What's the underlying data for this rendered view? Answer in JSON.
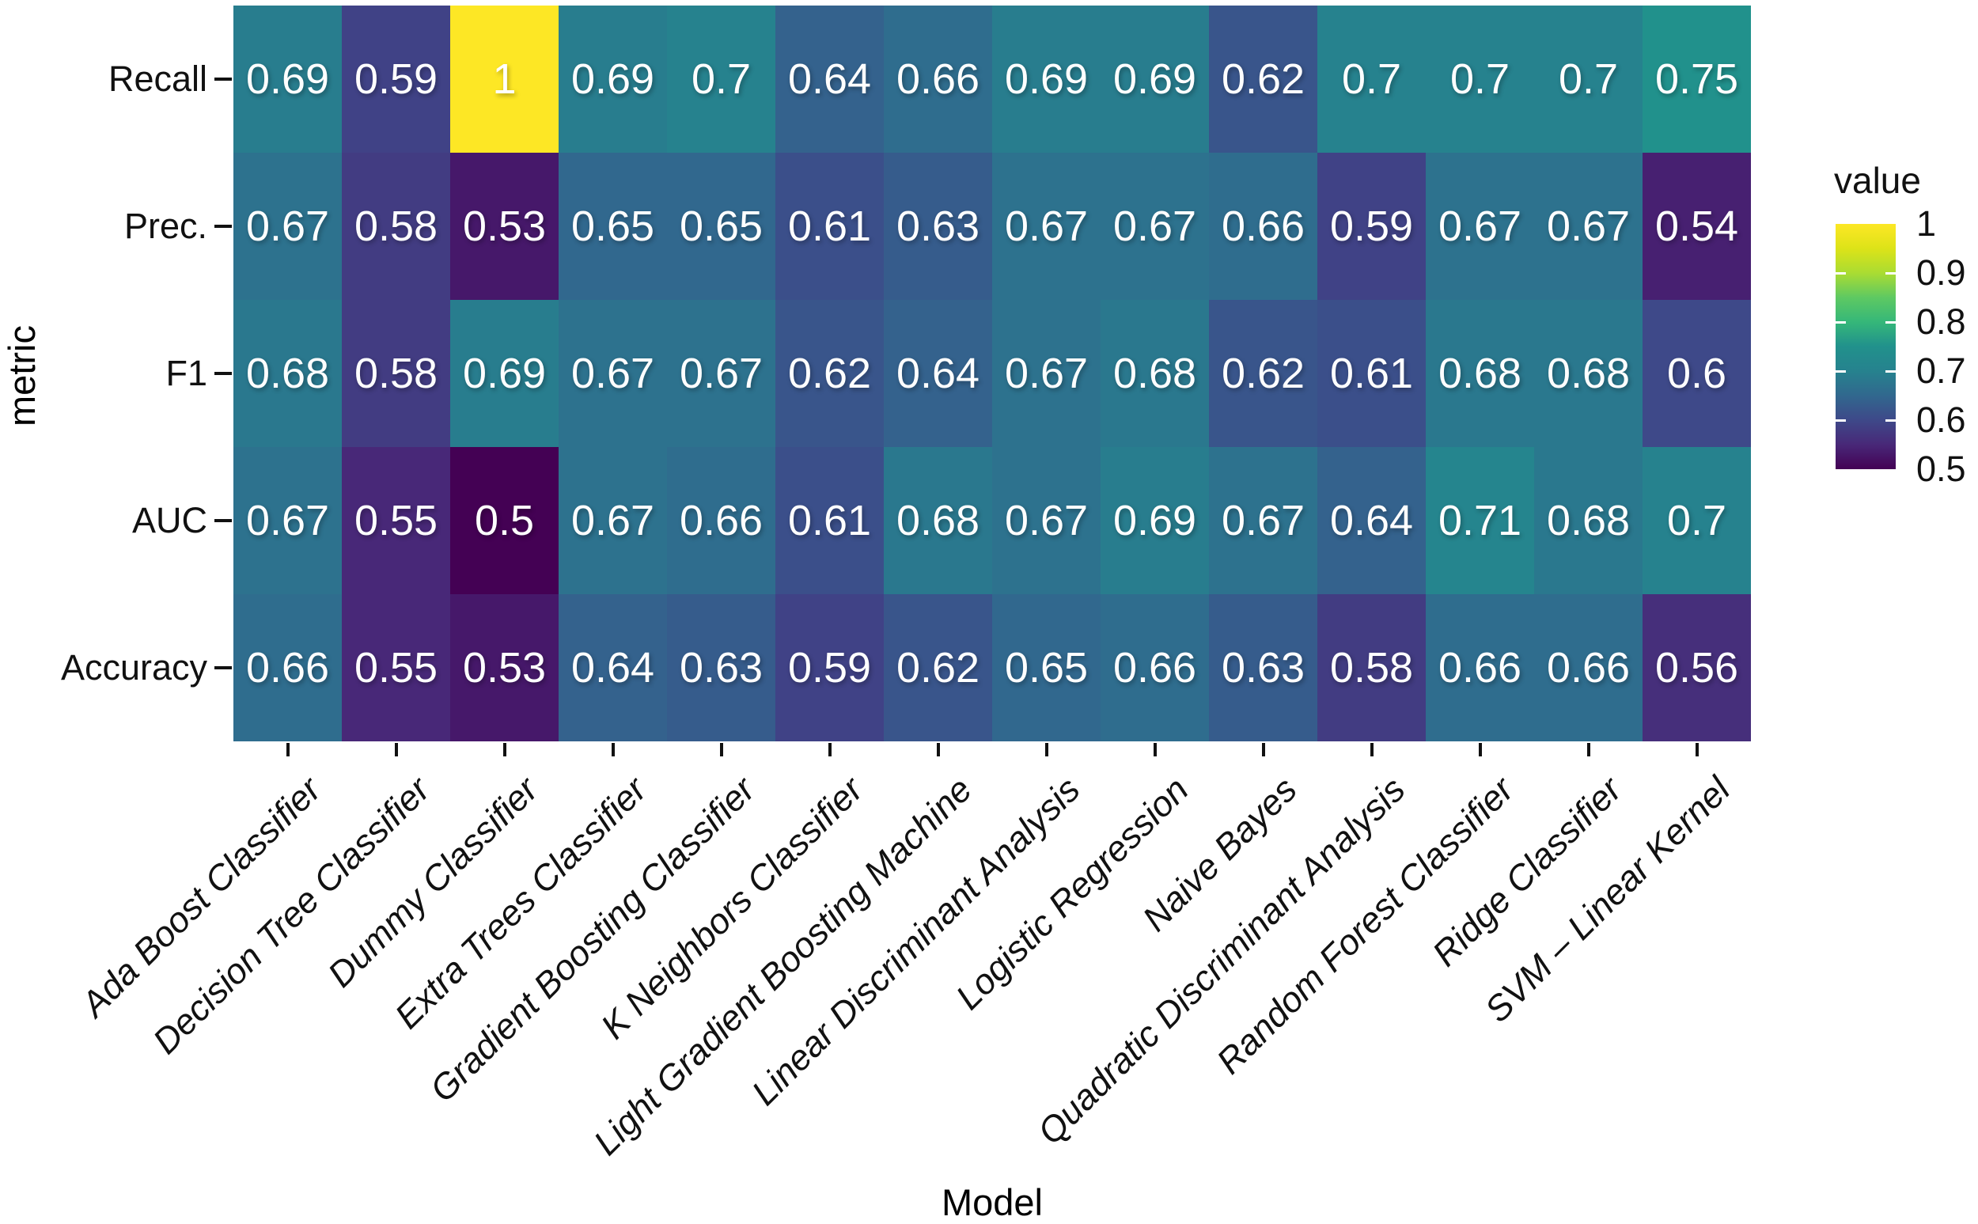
{
  "chart_data": {
    "type": "heatmap",
    "title": "",
    "xlabel": "Model",
    "ylabel": "metric",
    "x_categories": [
      "Ada Boost Classifier",
      "Decision Tree Classifier",
      "Dummy Classifier",
      "Extra Trees Classifier",
      "Gradient Boosting Classifier",
      "K Neighbors Classifier",
      "Light Gradient Boosting Machine",
      "Linear Discriminant Analysis",
      "Logistic Regression",
      "Naive Bayes",
      "Quadratic Discriminant Analysis",
      "Random Forest Classifier",
      "Ridge Classifier",
      "SVM – Linear Kernel"
    ],
    "y_categories_top_to_bottom": [
      "Recall",
      "Prec.",
      "F1",
      "AUC",
      "Accuracy"
    ],
    "values_by_row": [
      [
        0.69,
        0.59,
        1,
        0.69,
        0.7,
        0.64,
        0.66,
        0.69,
        0.69,
        0.62,
        0.7,
        0.7,
        0.7,
        0.75
      ],
      [
        0.67,
        0.58,
        0.53,
        0.65,
        0.65,
        0.61,
        0.63,
        0.67,
        0.67,
        0.66,
        0.59,
        0.67,
        0.67,
        0.54
      ],
      [
        0.68,
        0.58,
        0.69,
        0.67,
        0.67,
        0.62,
        0.64,
        0.67,
        0.68,
        0.62,
        0.61,
        0.68,
        0.68,
        0.6
      ],
      [
        0.67,
        0.55,
        0.5,
        0.67,
        0.66,
        0.61,
        0.68,
        0.67,
        0.69,
        0.67,
        0.64,
        0.71,
        0.68,
        0.7
      ],
      [
        0.66,
        0.55,
        0.53,
        0.64,
        0.63,
        0.59,
        0.62,
        0.65,
        0.66,
        0.63,
        0.58,
        0.66,
        0.66,
        0.56
      ]
    ],
    "color_scale": {
      "name": "viridis",
      "domain": [
        0.5,
        1
      ],
      "legend_title": "value",
      "legend_tick_labels": [
        "1",
        "0.9",
        "0.8",
        "0.7",
        "0.6",
        "0.5"
      ],
      "legend_tick_values": [
        1,
        0.9,
        0.8,
        0.7,
        0.6,
        0.5
      ]
    },
    "grid": false,
    "legend_position": "right",
    "cell_value_color": "#ffffff",
    "axis_text_color": "#111111"
  },
  "colors": {
    "viridis_anchors": [
      "#440154",
      "#482878",
      "#3e4989",
      "#31688e",
      "#26828e",
      "#21918c",
      "#35b779",
      "#5ec962",
      "#aadc32",
      "#dde318",
      "#fde725"
    ],
    "min_color": "#440154",
    "max_color": "#fde725"
  }
}
